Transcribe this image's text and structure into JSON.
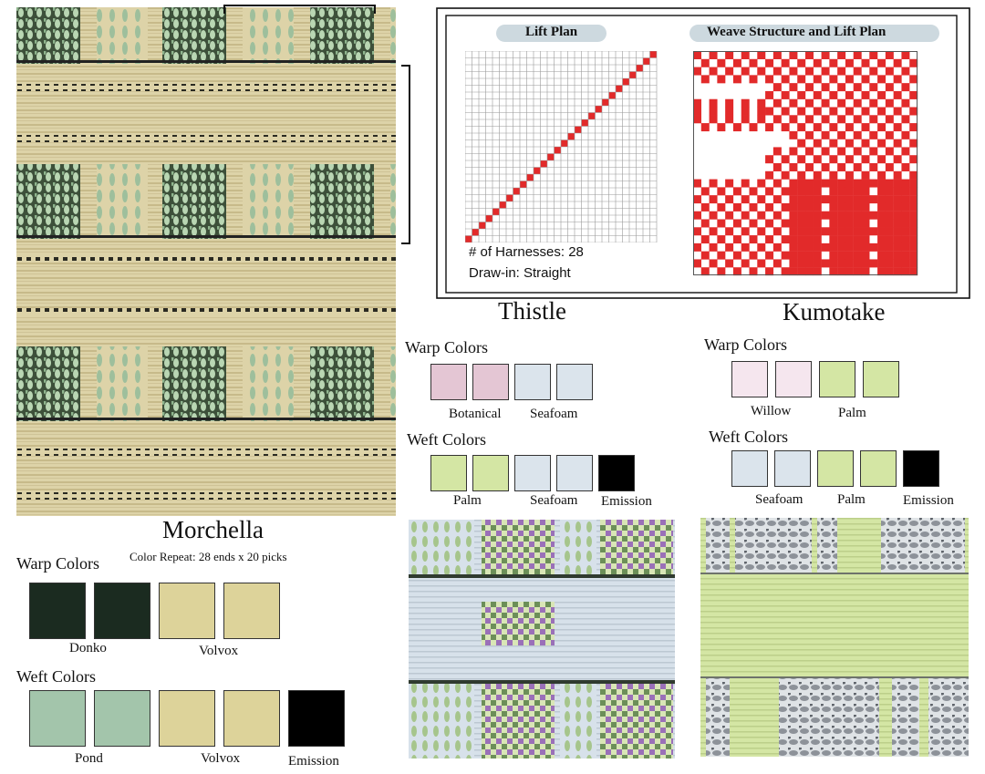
{
  "morchella": {
    "title": "Morchella",
    "color_repeat": "Color Repeat: 28 ends x 20 picks",
    "warp_label": "Warp Colors",
    "weft_label": "Weft Colors",
    "warp": [
      {
        "color": "#1b2b20"
      },
      {
        "color": "#1b2b20"
      },
      {
        "color": "#ddd39a"
      },
      {
        "color": "#ddd39a"
      }
    ],
    "warp_names": [
      "Donko",
      "Volvox"
    ],
    "weft": [
      {
        "color": "#a3c5ab"
      },
      {
        "color": "#a3c5ab"
      },
      {
        "color": "#ddd39a"
      },
      {
        "color": "#ddd39a"
      },
      {
        "color": "#000000"
      }
    ],
    "weft_names": [
      "Pond",
      "Volvox",
      "Emission"
    ],
    "fabric_colors": {
      "base": "#ddd3a8",
      "stripe": "#c9bd8e",
      "dark": "#3a4a36",
      "green": "#b7d3b0"
    }
  },
  "plans": {
    "lift_plan_title": "Lift Plan",
    "weave_title": "Weave Structure and Lift Plan",
    "harnesses": "# of Harnesses: 28",
    "draw_in": "Draw-in: Straight",
    "grid_size": 28,
    "accent": "#e22a2a"
  },
  "thistle": {
    "title": "Thistle",
    "warp_label": "Warp Colors",
    "weft_label": "Weft Colors",
    "warp": [
      {
        "color": "#e4c6d4"
      },
      {
        "color": "#e4c6d4"
      },
      {
        "color": "#dbe4ec"
      },
      {
        "color": "#dbe4ec"
      }
    ],
    "warp_names": [
      "Botanical",
      "Seafoam"
    ],
    "weft": [
      {
        "color": "#d4e6a4"
      },
      {
        "color": "#d4e6a4"
      },
      {
        "color": "#dbe4ec"
      },
      {
        "color": "#dbe4ec"
      },
      {
        "color": "#000000"
      }
    ],
    "weft_names": [
      "Palm",
      "Seafoam",
      "Emission"
    ],
    "fabric_colors": {
      "base": "#d7e1ea",
      "accent": "#9a70b8",
      "green": "#aac88a",
      "dark": "#2f3a2f"
    }
  },
  "kumotake": {
    "title": "Kumotake",
    "warp_label": "Warp Colors",
    "weft_label": "Weft Colors",
    "warp": [
      {
        "color": "#f5e6ee"
      },
      {
        "color": "#f5e6ee"
      },
      {
        "color": "#d4e6a4"
      },
      {
        "color": "#d4e6a4"
      }
    ],
    "warp_names": [
      "Willow",
      "Palm"
    ],
    "weft": [
      {
        "color": "#dbe4ec"
      },
      {
        "color": "#dbe4ec"
      },
      {
        "color": "#d4e6a4"
      },
      {
        "color": "#d4e6a4"
      },
      {
        "color": "#000000"
      }
    ],
    "weft_names": [
      "Seafoam",
      "Palm",
      "Emission"
    ],
    "fabric_colors": {
      "base": "#d4e6a4",
      "stripe": "#c6da92",
      "gray": "#8d9299",
      "light": "#dfe3e6"
    }
  }
}
